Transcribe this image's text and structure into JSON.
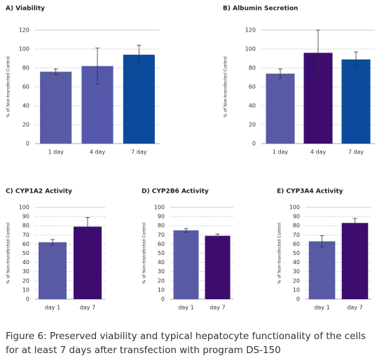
{
  "chart_data": [
    {
      "type": "bar",
      "title": "A)  Viability",
      "y_label": "% of Non-transfected Control",
      "categories": [
        "1 day",
        "4 day",
        "7 day"
      ],
      "values": [
        76,
        82,
        94
      ],
      "errors": [
        3,
        19,
        10
      ],
      "colors": [
        "#585ba3",
        "#5558aa",
        "#0c4a9b"
      ],
      "ylim": [
        0,
        120
      ],
      "yticks": [
        0,
        20,
        40,
        60,
        80,
        100,
        120
      ],
      "grid": true
    },
    {
      "type": "bar",
      "title": "B)  Albumin Secretion",
      "y_label": "% of Non-transfected Control",
      "categories": [
        "1 day",
        "4 day",
        "7 day"
      ],
      "values": [
        74,
        96,
        89
      ],
      "errors": [
        5,
        24,
        8
      ],
      "colors": [
        "#585ba3",
        "#3c0c6e",
        "#0c4a9b"
      ],
      "ylim": [
        0,
        120
      ],
      "yticks": [
        0,
        20,
        40,
        60,
        80,
        100,
        120
      ],
      "grid": true
    },
    {
      "type": "bar",
      "title": "C)  CYP1A2 Activity",
      "y_label": "% of Non-transfected Control",
      "categories": [
        "day 1",
        "day 7"
      ],
      "values": [
        62,
        79
      ],
      "errors": [
        3,
        10
      ],
      "colors": [
        "#585ba3",
        "#3c0c6e"
      ],
      "ylim": [
        0,
        100
      ],
      "yticks": [
        0,
        10,
        20,
        30,
        40,
        50,
        60,
        70,
        80,
        90,
        100
      ],
      "grid": true
    },
    {
      "type": "bar",
      "title": "D)  CYP2B6 Activity",
      "y_label": "% of Non-transfected Control",
      "categories": [
        "day 1",
        "day 7"
      ],
      "values": [
        75,
        69
      ],
      "errors": [
        2,
        2
      ],
      "colors": [
        "#585ba3",
        "#3c0c6e"
      ],
      "ylim": [
        0,
        100
      ],
      "yticks": [
        0,
        10,
        20,
        30,
        40,
        50,
        60,
        70,
        80,
        90,
        100
      ],
      "grid": true
    },
    {
      "type": "bar",
      "title": "E)  CYP3A4 Activity",
      "y_label": "% of Non-transfected Control",
      "categories": [
        "day 1",
        "day 7"
      ],
      "values": [
        63,
        83
      ],
      "errors": [
        6,
        5
      ],
      "colors": [
        "#585ba3",
        "#3c0c6e"
      ],
      "ylim": [
        0,
        100
      ],
      "yticks": [
        0,
        10,
        20,
        30,
        40,
        50,
        60,
        70,
        80,
        90,
        100
      ],
      "grid": true
    }
  ],
  "caption": [
    "Figure 6: Preserved viability and typical hepatocyte functionality of the cells",
    "for at least 7 days after transfection with program DS-150"
  ]
}
